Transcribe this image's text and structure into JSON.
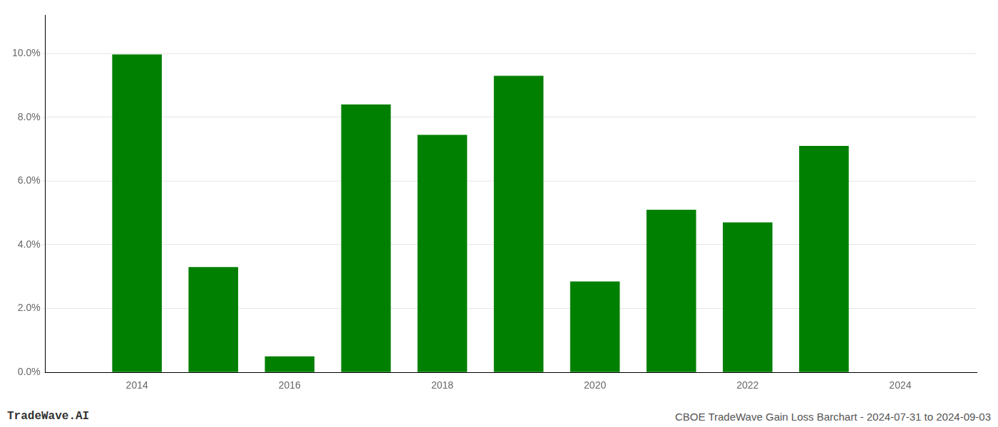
{
  "chart_data": {
    "type": "bar",
    "x": [
      2014,
      2015,
      2016,
      2017,
      2018,
      2019,
      2020,
      2021,
      2022,
      2023
    ],
    "values": [
      0.0997,
      0.033,
      0.005,
      0.084,
      0.0745,
      0.093,
      0.0285,
      0.051,
      0.047,
      0.071
    ],
    "color": "#008000",
    "xlim": [
      2012.8,
      2025.0
    ],
    "xticks": [
      2014,
      2016,
      2018,
      2020,
      2022,
      2024
    ],
    "ylim": [
      0,
      0.112
    ],
    "yticks": [
      {
        "value": 0.0,
        "label": "0.0%"
      },
      {
        "value": 0.02,
        "label": "2.0%"
      },
      {
        "value": 0.04,
        "label": "4.0%"
      },
      {
        "value": 0.06,
        "label": "6.0%"
      },
      {
        "value": 0.08,
        "label": "8.0%"
      },
      {
        "value": 0.1,
        "label": "10.0%"
      }
    ],
    "grid": true,
    "annotations": [
      "TradeWave.AI",
      "CBOE TradeWave Gain Loss Barchart - 2024-07-31 to 2024-09-03"
    ]
  }
}
